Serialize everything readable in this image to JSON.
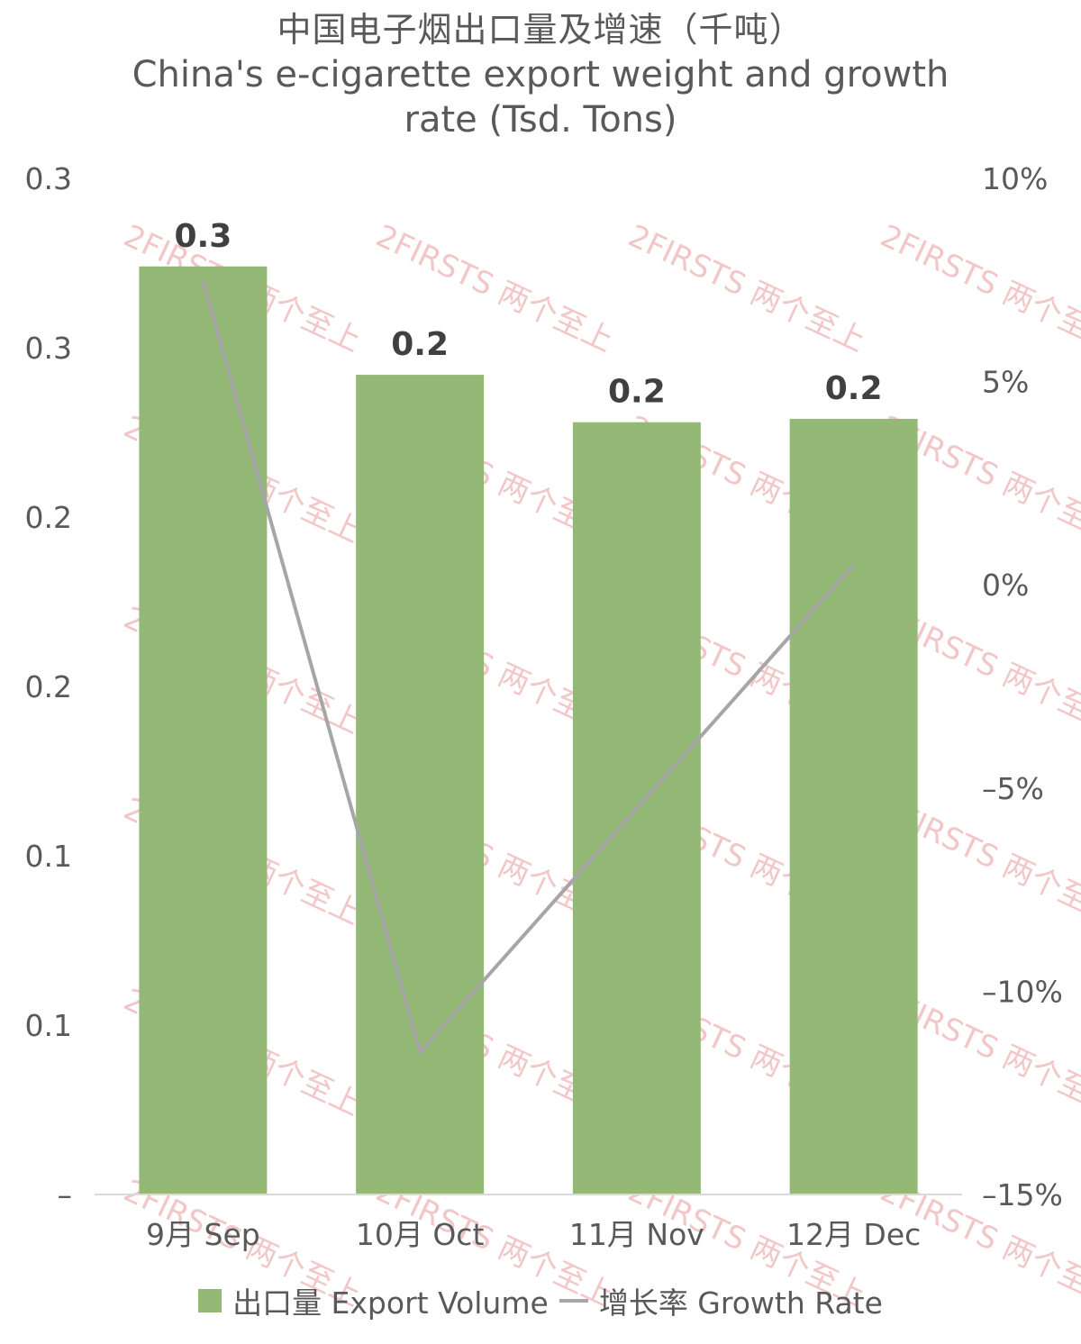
{
  "title": {
    "zh": "中国电子烟出口量及增速（千吨）",
    "en_line1": "China's e-cigarette export weight and growth",
    "en_line2": "rate (Tsd. Tons)"
  },
  "watermark": "2FIRSTS 两个至上",
  "colors": {
    "bar": "#94b977",
    "line": "#a6a6a6",
    "axis": "#d9d9d9",
    "watermark": "#f2c7c7"
  },
  "legend": {
    "bar_label": "出口量 Export Volume",
    "line_label": "增长率 Growth Rate"
  },
  "chart_data": {
    "type": "bar",
    "categories": [
      "9月 Sep",
      "10月 Oct",
      "11月 Nov",
      "12月 Dec"
    ],
    "series": [
      {
        "name": "出口量 Export Volume",
        "type": "bar",
        "axis": "left",
        "values": [
          0.274,
          0.242,
          0.228,
          0.229
        ],
        "data_labels": [
          "0.3",
          "0.2",
          "0.2",
          "0.2"
        ]
      },
      {
        "name": "增长率 Growth Rate",
        "type": "line",
        "axis": "right",
        "values": [
          7.5,
          -11.5,
          -5.5,
          0.5
        ]
      }
    ],
    "y_left": {
      "ylim": [
        0,
        0.3
      ],
      "ticks": [
        0,
        0.05,
        0.1,
        0.15,
        0.2,
        0.25,
        0.3
      ],
      "tick_labels": [
        "–",
        "0.1",
        "0.1",
        "0.2",
        "0.2",
        "0.3",
        "0.3"
      ]
    },
    "y_right": {
      "ylim": [
        -15,
        10
      ],
      "ticks": [
        -15,
        -10,
        -5,
        0,
        5,
        10
      ],
      "tick_labels": [
        "–15%",
        "–10%",
        "–5%",
        "0%",
        "5%",
        "10%"
      ]
    },
    "grid": false,
    "legend_position": "bottom"
  }
}
